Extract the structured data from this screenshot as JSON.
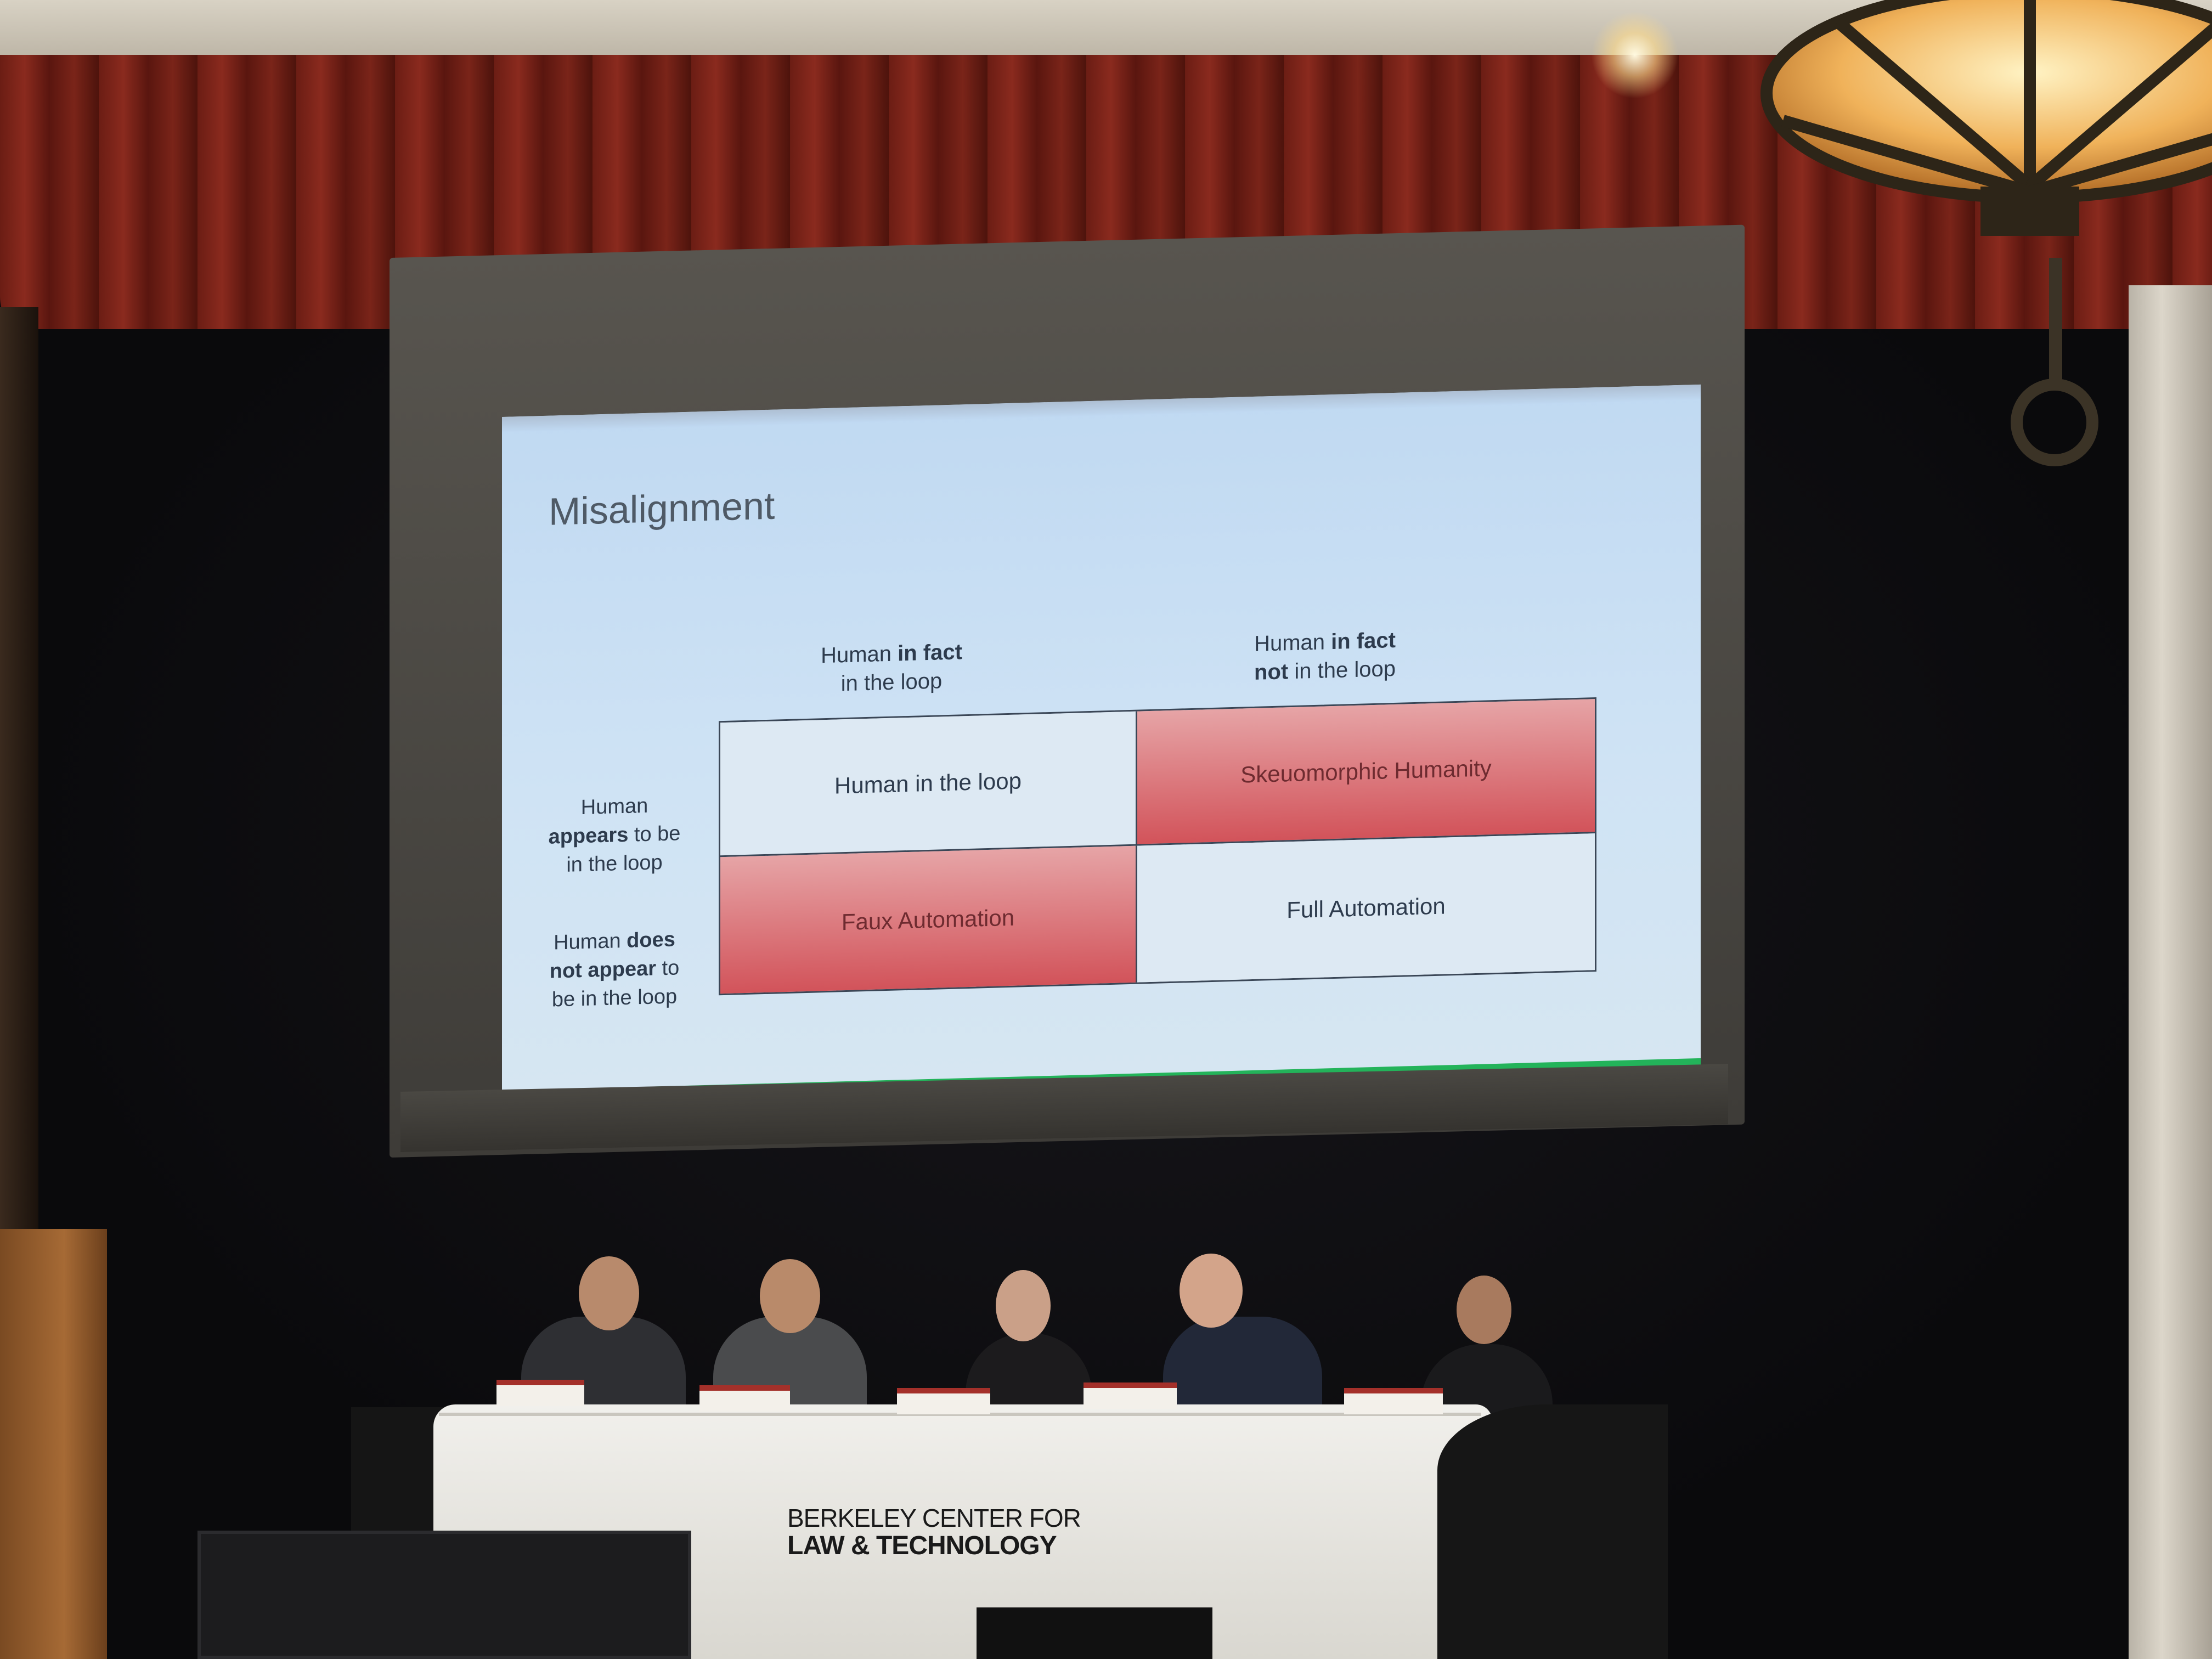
{
  "slide": {
    "title": "Misalignment",
    "columns": [
      {
        "pre": "Human ",
        "bold": "in fact",
        "mid": "",
        "line2_bold": "",
        "line2": "in the loop"
      },
      {
        "pre": "Human ",
        "bold": "in fact",
        "mid": "",
        "line2_bold": "not",
        "line2": " in the loop"
      }
    ],
    "rows": [
      {
        "l1": "Human",
        "l2_bold": "appears",
        "l2": " to be",
        "l3": "in the loop"
      },
      {
        "l1_pre": "Human ",
        "l1_bold": "does",
        "l2_bold": "not appear",
        "l2": " to",
        "l3": "be in the loop"
      }
    ],
    "cells": {
      "human_in_the_loop": "Human in the loop",
      "skeuomorphic_humanity": "Skeuomorphic Humanity",
      "faux_automation": "Faux Automation",
      "full_automation": "Full Automation"
    }
  },
  "table_banner": {
    "line1": "BERKELEY CENTER FOR",
    "line2": "LAW & TECHNOLOGY"
  },
  "colors": {
    "slide_background": "#c0d9f2",
    "highlight_cell": "#d2535a",
    "accent_bar": "#23b35a",
    "curtain": "#7a2419"
  }
}
